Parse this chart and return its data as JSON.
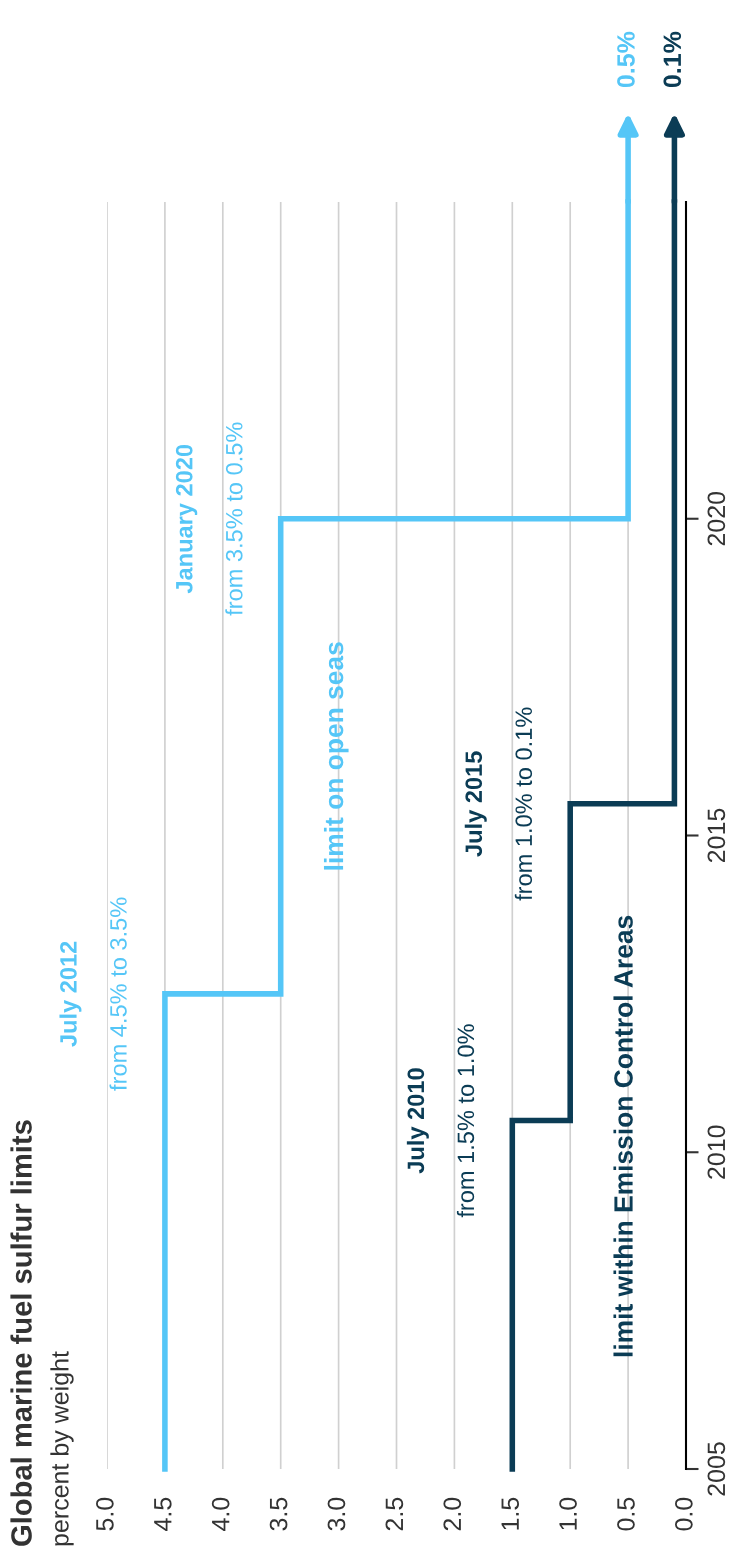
{
  "chart_data": {
    "type": "step",
    "orientation": "horizontal",
    "title": "Global marine fuel sulfur limits",
    "subtitle": "percent by weight",
    "series": [
      {
        "name": "limit on open seas",
        "color": "#55c6f7",
        "x": [
          2005,
          2012.5,
          2020,
          2025
        ],
        "values": [
          4.5,
          3.5,
          0.5,
          0.5
        ],
        "value_labels": [
          null,
          null,
          null,
          "0.5%"
        ]
      },
      {
        "name": "limit within Emission Control Areas",
        "color": "#0b3c55",
        "x": [
          2005,
          2010.5,
          2015.5,
          2025
        ],
        "values": [
          1.5,
          1.0,
          0.1,
          0.1
        ],
        "value_labels": [
          null,
          null,
          null,
          "0.1%"
        ]
      }
    ],
    "annotations": [
      "July 2012",
      "from 4.5% to 3.5%",
      "January 2020",
      "from 3.5% to 0.5%",
      "July 2010",
      "from 1.5% to 1.0%",
      "July 2015",
      "from 1.0% to 0.1%"
    ],
    "xlim": [
      5.0,
      0.0
    ],
    "xticks": [
      {
        "value": 5.0,
        "label": "5.0"
      },
      {
        "value": 4.5,
        "label": "4.5"
      },
      {
        "value": 4.0,
        "label": "4.0"
      },
      {
        "value": 3.5,
        "label": "3.5"
      },
      {
        "value": 3.0,
        "label": "3.0"
      },
      {
        "value": 2.5,
        "label": "2.5"
      },
      {
        "value": 2.0,
        "label": "2.0"
      },
      {
        "value": 1.5,
        "label": "1.5"
      },
      {
        "value": 1.0,
        "label": "1.0"
      },
      {
        "value": 0.5,
        "label": "0.5"
      },
      {
        "value": 0.0,
        "label": "0.0"
      }
    ],
    "ylim": [
      2005,
      2025
    ],
    "yticks": [
      2005,
      2010,
      2015,
      2020
    ],
    "grid": "x",
    "legend": false,
    "line_style": "solid",
    "marker": "none"
  }
}
